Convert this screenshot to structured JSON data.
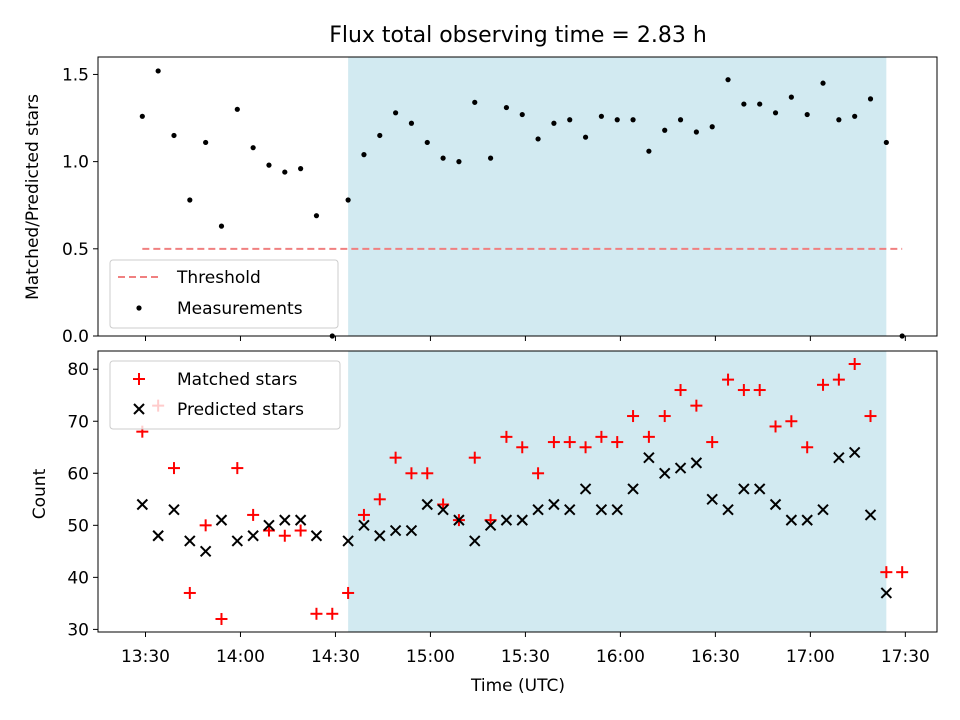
{
  "chart_data": [
    {
      "type": "scatter",
      "title": "Flux total observing time = 2.83 h",
      "xlabel": "",
      "ylabel": "Matched/Predicted stars",
      "xlim": [
        "13:15",
        "17:40"
      ],
      "ylim": [
        0,
        1.6
      ],
      "yticks": [
        "0.0",
        "0.5",
        "1.0",
        "1.5"
      ],
      "shaded_interval": [
        "14:34",
        "17:24"
      ],
      "shade_color": "#add8e6",
      "legend_position": "lower-left",
      "series": [
        {
          "name": "Threshold",
          "kind": "dashed-line",
          "color": "#f08080",
          "x": [
            "13:29",
            "17:29"
          ],
          "y": [
            0.5,
            0.5
          ]
        },
        {
          "name": "Measurements",
          "kind": "dot",
          "color": "#000000",
          "x": [
            "13:29",
            "13:34",
            "13:39",
            "13:44",
            "13:49",
            "13:54",
            "13:59",
            "14:04",
            "14:09",
            "14:14",
            "14:19",
            "14:24",
            "14:29",
            "14:34",
            "14:39",
            "14:44",
            "14:49",
            "14:54",
            "14:59",
            "15:04",
            "15:09",
            "15:14",
            "15:19",
            "15:24",
            "15:29",
            "15:34",
            "15:39",
            "15:44",
            "15:49",
            "15:54",
            "15:59",
            "16:04",
            "16:09",
            "16:14",
            "16:19",
            "16:24",
            "16:29",
            "16:34",
            "16:39",
            "16:44",
            "16:49",
            "16:54",
            "16:59",
            "17:04",
            "17:09",
            "17:14",
            "17:19",
            "17:24",
            "17:29"
          ],
          "y": [
            1.26,
            1.52,
            1.15,
            0.78,
            1.11,
            0.63,
            1.3,
            1.08,
            0.98,
            0.94,
            0.96,
            0.69,
            0.0,
            0.78,
            1.04,
            1.15,
            1.28,
            1.22,
            1.11,
            1.02,
            1.0,
            1.34,
            1.02,
            1.31,
            1.27,
            1.13,
            1.22,
            1.24,
            1.14,
            1.26,
            1.24,
            1.24,
            1.06,
            1.18,
            1.24,
            1.17,
            1.2,
            1.47,
            1.33,
            1.33,
            1.28,
            1.37,
            1.27,
            1.45,
            1.24,
            1.26,
            1.36,
            1.11,
            0.0
          ]
        }
      ]
    },
    {
      "type": "scatter",
      "title": "",
      "xlabel": "Time (UTC)",
      "ylabel": "Count",
      "xlim": [
        "13:15",
        "17:40"
      ],
      "ylim": [
        29.5,
        83.5
      ],
      "yticks": [
        "30",
        "40",
        "50",
        "60",
        "70",
        "80"
      ],
      "xticks": [
        "13:30",
        "14:00",
        "14:30",
        "15:00",
        "15:30",
        "16:00",
        "16:30",
        "17:00",
        "17:30"
      ],
      "shaded_interval": [
        "14:34",
        "17:24"
      ],
      "shade_color": "#add8e6",
      "legend_position": "upper-left",
      "series": [
        {
          "name": "Matched stars",
          "kind": "plus",
          "color": "#ff0000",
          "x": [
            "13:29",
            "13:34",
            "13:39",
            "13:44",
            "13:49",
            "13:54",
            "13:59",
            "14:04",
            "14:09",
            "14:14",
            "14:19",
            "14:24",
            "14:29",
            "14:34",
            "14:39",
            "14:44",
            "14:49",
            "14:54",
            "14:59",
            "15:04",
            "15:09",
            "15:14",
            "15:19",
            "15:24",
            "15:29",
            "15:34",
            "15:39",
            "15:44",
            "15:49",
            "15:54",
            "15:59",
            "16:04",
            "16:09",
            "16:14",
            "16:19",
            "16:24",
            "16:29",
            "16:34",
            "16:39",
            "16:44",
            "16:49",
            "16:54",
            "16:59",
            "17:04",
            "17:09",
            "17:14",
            "17:19",
            "17:24",
            "17:29"
          ],
          "y": [
            68,
            73,
            61,
            37,
            50,
            32,
            61,
            52,
            49,
            48,
            49,
            33,
            33,
            37,
            52,
            55,
            63,
            60,
            60,
            54,
            51,
            63,
            51,
            67,
            65,
            60,
            66,
            66,
            65,
            67,
            66,
            71,
            67,
            71,
            76,
            73,
            66,
            78,
            76,
            76,
            69,
            70,
            65,
            77,
            78,
            81,
            71,
            41,
            41
          ]
        },
        {
          "name": "Predicted stars",
          "kind": "x",
          "color": "#000000",
          "x": [
            "13:29",
            "13:34",
            "13:39",
            "13:44",
            "13:49",
            "13:54",
            "13:59",
            "14:04",
            "14:09",
            "14:14",
            "14:19",
            "14:24",
            "14:34",
            "14:39",
            "14:44",
            "14:49",
            "14:54",
            "14:59",
            "15:04",
            "15:09",
            "15:14",
            "15:19",
            "15:24",
            "15:29",
            "15:34",
            "15:39",
            "15:44",
            "15:49",
            "15:54",
            "15:59",
            "16:04",
            "16:09",
            "16:14",
            "16:19",
            "16:24",
            "16:29",
            "16:34",
            "16:39",
            "16:44",
            "16:49",
            "16:54",
            "16:59",
            "17:04",
            "17:09",
            "17:14",
            "17:19",
            "17:24"
          ],
          "y": [
            54,
            48,
            53,
            47,
            45,
            51,
            47,
            48,
            50,
            51,
            51,
            48,
            47,
            50,
            48,
            49,
            49,
            54,
            53,
            51,
            47,
            50,
            51,
            51,
            53,
            54,
            53,
            57,
            53,
            53,
            57,
            63,
            60,
            61,
            62,
            55,
            53,
            57,
            57,
            54,
            51,
            51,
            53,
            63,
            64,
            52,
            37
          ]
        }
      ]
    }
  ]
}
